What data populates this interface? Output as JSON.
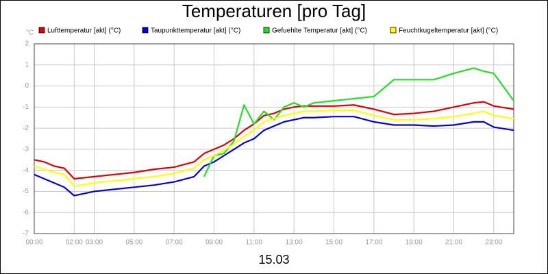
{
  "chart_data": {
    "type": "line",
    "title": "Temperaturen [pro Tag]",
    "unit_label": "°C",
    "xlabel": "15.03",
    "x": [
      0,
      0.5,
      1,
      1.5,
      2,
      3,
      4,
      5,
      6,
      7,
      8,
      8.5,
      9,
      9.5,
      10,
      10.5,
      11,
      11.5,
      12,
      12.5,
      13,
      13.5,
      14,
      15,
      16,
      17,
      18,
      19,
      20,
      21,
      22,
      22.5,
      23,
      24
    ],
    "series": [
      {
        "name": "Lufttemperatur [akt] (°C)",
        "color": "#e00000",
        "values": [
          -3.5,
          -3.6,
          -3.8,
          -3.9,
          -4.4,
          -4.3,
          -4.2,
          -4.1,
          -3.95,
          -3.85,
          -3.6,
          -3.2,
          -3.0,
          -2.8,
          -2.5,
          -2.1,
          -1.8,
          -1.4,
          -1.3,
          -1.1,
          -1.0,
          -0.95,
          -0.95,
          -0.95,
          -0.9,
          -1.1,
          -1.35,
          -1.3,
          -1.2,
          -1.0,
          -0.8,
          -0.75,
          -0.95,
          -1.1
        ]
      },
      {
        "name": "Taupunkttemperatur [akt] (°C)",
        "color": "#0000e0",
        "values": [
          -4.2,
          -4.4,
          -4.6,
          -4.8,
          -5.2,
          -5.0,
          -4.9,
          -4.8,
          -4.7,
          -4.55,
          -4.3,
          -3.8,
          -3.6,
          -3.3,
          -3.0,
          -2.7,
          -2.5,
          -2.1,
          -1.9,
          -1.7,
          -1.6,
          -1.5,
          -1.5,
          -1.45,
          -1.45,
          -1.7,
          -1.85,
          -1.85,
          -1.9,
          -1.85,
          -1.7,
          -1.7,
          -1.95,
          -2.1
        ]
      },
      {
        "name": "Gefuehlte Temperatur [akt] (°C)",
        "color": "#20e020",
        "values": [
          null,
          null,
          null,
          null,
          null,
          null,
          null,
          null,
          null,
          null,
          null,
          -4.3,
          -3.3,
          -3.2,
          -2.6,
          -0.9,
          -1.8,
          -1.2,
          -1.6,
          -1.0,
          -0.8,
          -1.0,
          -0.8,
          -0.7,
          -0.6,
          -0.5,
          0.3,
          0.3,
          0.3,
          0.6,
          0.85,
          0.7,
          0.6,
          -0.7
        ]
      },
      {
        "name": "Feuchtkugeltemperatur [akt] (°C)",
        "color": "#ffff00",
        "values": [
          -3.8,
          -3.95,
          -4.1,
          -4.2,
          -4.75,
          -4.6,
          -4.5,
          -4.4,
          -4.3,
          -4.15,
          -3.9,
          -3.5,
          -3.3,
          -3.05,
          -2.75,
          -2.4,
          -2.1,
          -1.7,
          -1.55,
          -1.4,
          -1.3,
          -1.2,
          -1.2,
          -1.15,
          -1.15,
          -1.4,
          -1.6,
          -1.6,
          -1.55,
          -1.45,
          -1.3,
          -1.2,
          -1.4,
          -1.55
        ]
      }
    ],
    "xlim": [
      0,
      24
    ],
    "xticks": [
      {
        "value": 0,
        "label": "00:00"
      },
      {
        "value": 2,
        "label": "02:00"
      },
      {
        "value": 3,
        "label": "03:00"
      },
      {
        "value": 5,
        "label": "05:00"
      },
      {
        "value": 7,
        "label": "07:00"
      },
      {
        "value": 9,
        "label": "09:00"
      },
      {
        "value": 11,
        "label": "11:00"
      },
      {
        "value": 13,
        "label": "13:00"
      },
      {
        "value": 15,
        "label": "15:00"
      },
      {
        "value": 17,
        "label": "17:00"
      },
      {
        "value": 19,
        "label": "19:00"
      },
      {
        "value": 21,
        "label": "21:00"
      },
      {
        "value": 23,
        "label": "23:00"
      }
    ],
    "ylim": [
      -7,
      2
    ],
    "yticks": [
      -7,
      -6,
      -5,
      -4,
      -3,
      -2,
      -1,
      0,
      1,
      2
    ],
    "grid": true
  }
}
